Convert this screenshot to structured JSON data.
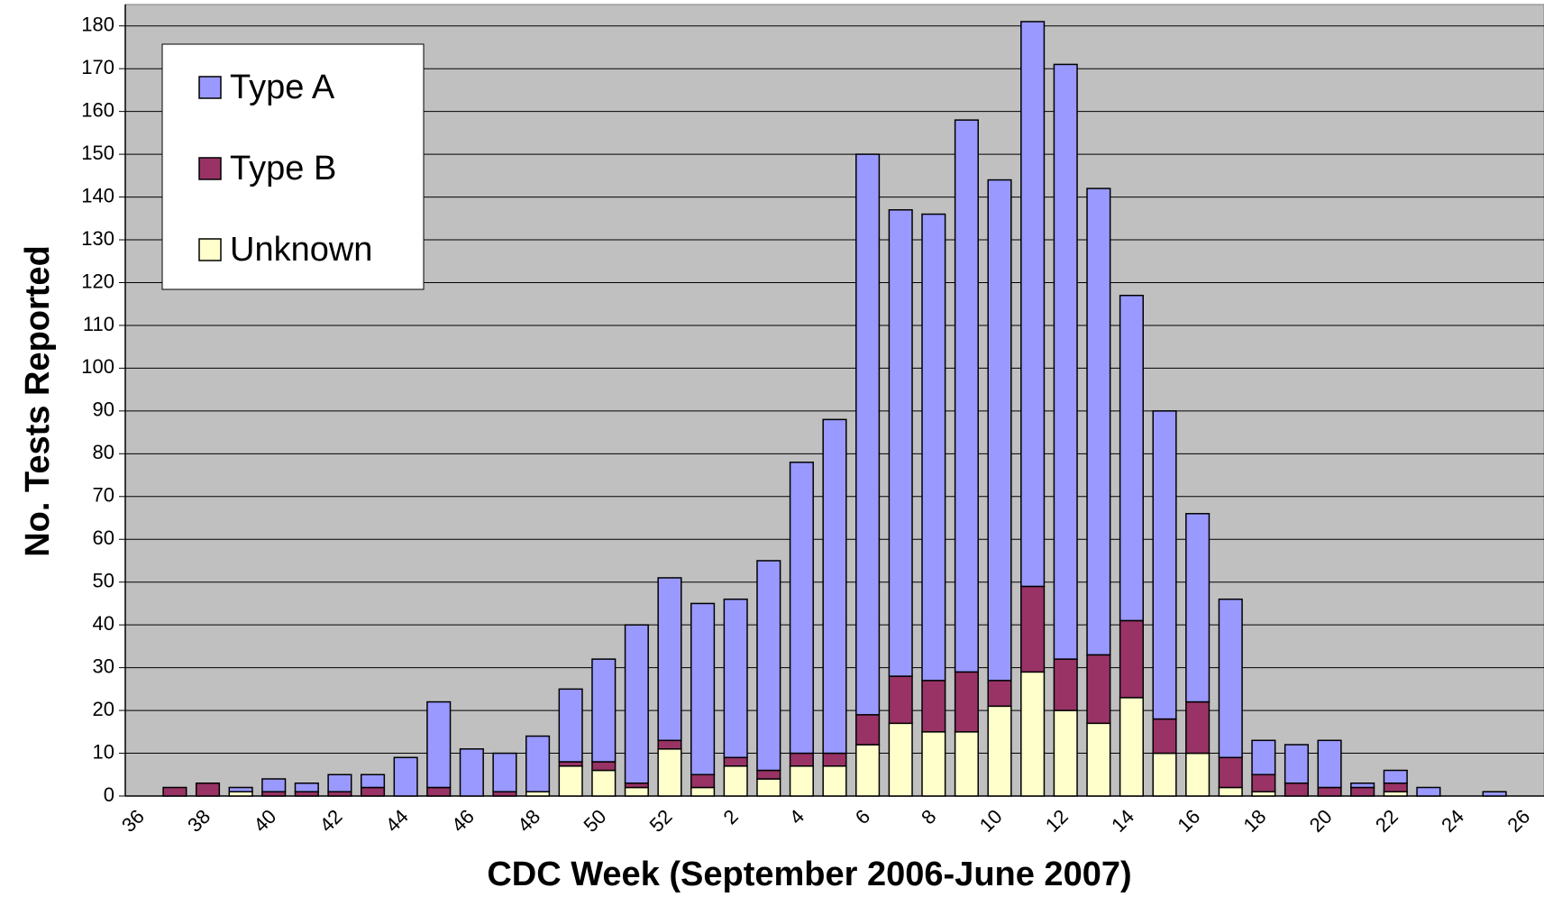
{
  "chart_data": {
    "type": "stacked_bar",
    "xlabel": "CDC Week (September 2006-June 2007)",
    "ylabel": "No. Tests Reported",
    "categories": [
      "36",
      null,
      "38",
      null,
      "40",
      null,
      "42",
      null,
      "44",
      null,
      "46",
      null,
      "48",
      null,
      "50",
      null,
      "52",
      null,
      "2",
      null,
      "4",
      null,
      "6",
      null,
      "8",
      null,
      "10",
      null,
      "12",
      null,
      "14",
      null,
      "16",
      null,
      "18",
      null,
      "20",
      null,
      "22",
      null,
      "24",
      null,
      "26"
    ],
    "series": [
      {
        "name": "Type A",
        "color": "#9999ff",
        "values": [
          0,
          0,
          0,
          1,
          3,
          2,
          4,
          3,
          9,
          20,
          11,
          9,
          13,
          17,
          24,
          37,
          38,
          40,
          37,
          49,
          68,
          78,
          131,
          109,
          109,
          129,
          117,
          132,
          139,
          109,
          76,
          72,
          44,
          37,
          8,
          9,
          11,
          1,
          3,
          2,
          0,
          1,
          0
        ]
      },
      {
        "name": "Type B",
        "color": "#993366",
        "values": [
          0,
          2,
          3,
          0,
          1,
          1,
          1,
          2,
          0,
          2,
          0,
          1,
          0,
          1,
          2,
          1,
          2,
          3,
          2,
          2,
          3,
          3,
          7,
          11,
          12,
          14,
          6,
          20,
          12,
          16,
          18,
          8,
          12,
          7,
          4,
          3,
          2,
          2,
          2,
          0,
          0,
          0,
          0
        ]
      },
      {
        "name": "Unknown",
        "color": "#ffffcc",
        "values": [
          0,
          0,
          0,
          1,
          0,
          0,
          0,
          0,
          0,
          0,
          0,
          0,
          1,
          7,
          6,
          2,
          11,
          2,
          7,
          4,
          7,
          7,
          12,
          17,
          15,
          15,
          21,
          29,
          20,
          17,
          23,
          10,
          10,
          2,
          1,
          0,
          0,
          0,
          1,
          0,
          0,
          0,
          0
        ]
      }
    ],
    "ylim": [
      0,
      185
    ],
    "yticks": [
      0,
      10,
      20,
      30,
      40,
      50,
      60,
      70,
      80,
      90,
      100,
      110,
      120,
      130,
      140,
      150,
      160,
      170,
      180
    ],
    "grid": true,
    "legend": "upper left",
    "plot_background": "#c0c0c0"
  }
}
